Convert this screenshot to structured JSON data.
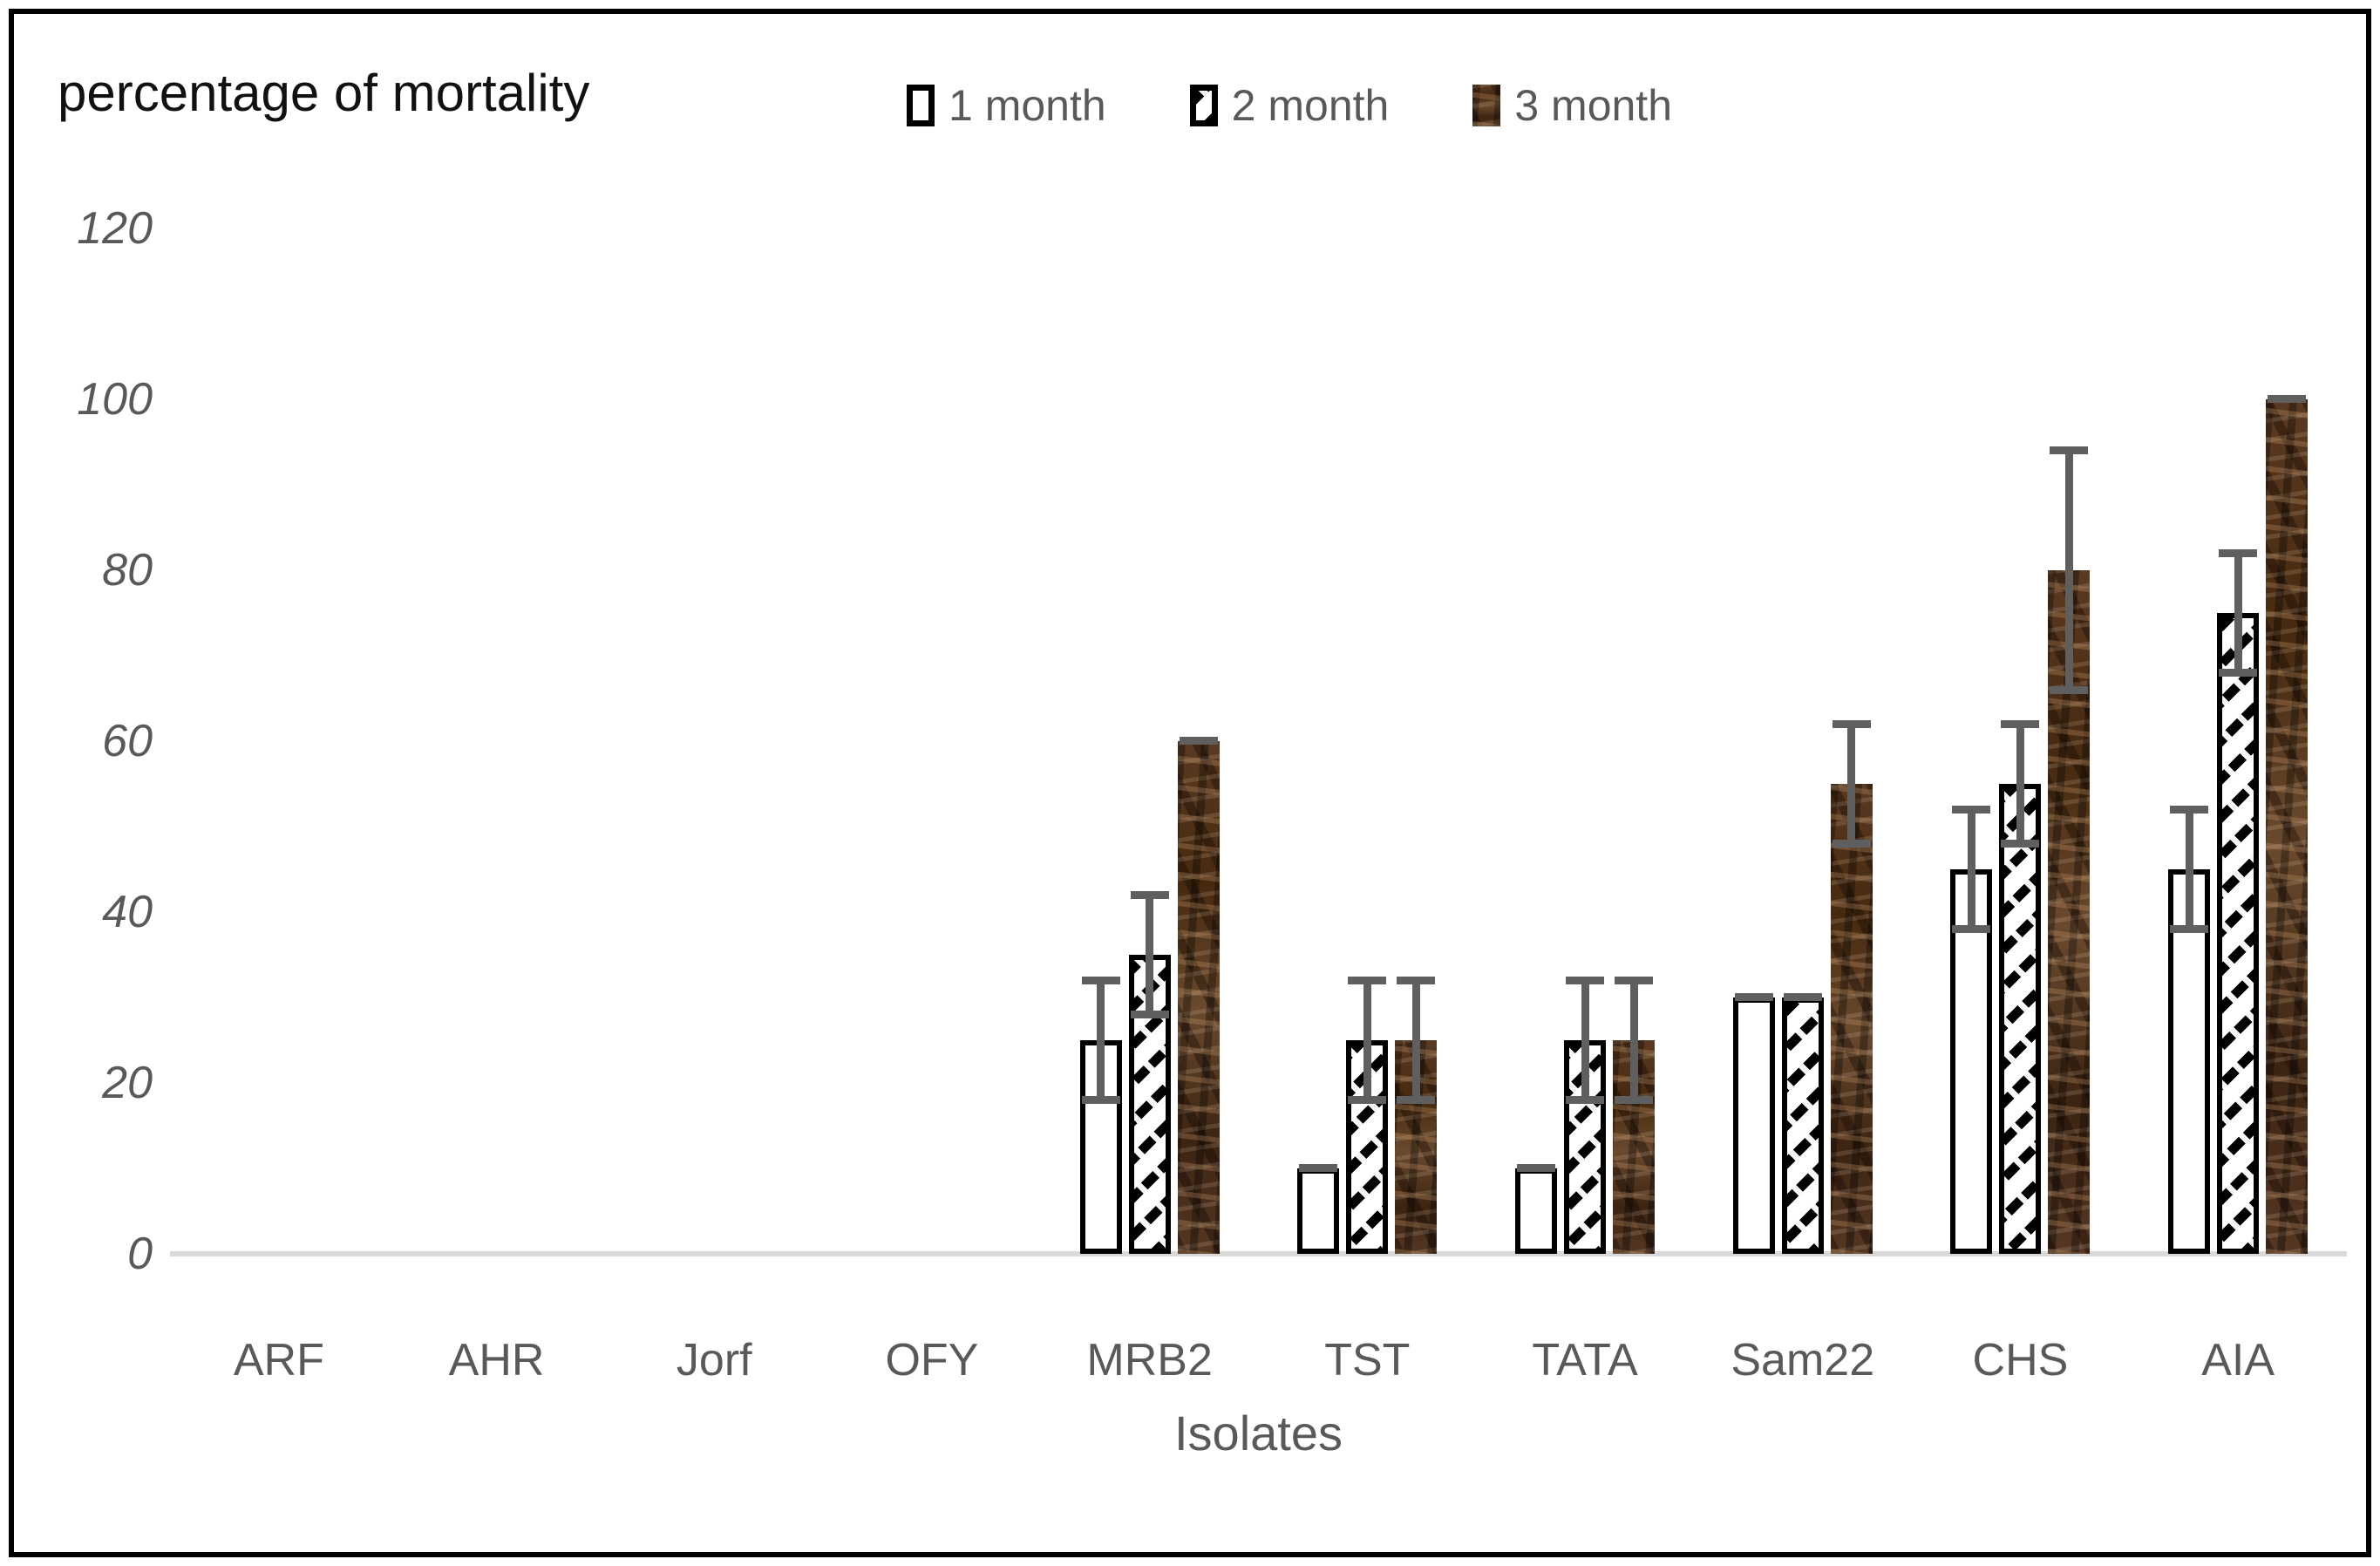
{
  "chart_data": {
    "type": "bar",
    "title": "percentage of mortality",
    "xlabel": "Isolates",
    "ylabel": "",
    "ylim": [
      0,
      120
    ],
    "yticks": [
      0,
      20,
      40,
      60,
      80,
      100,
      120
    ],
    "categories": [
      "ARF",
      "AHR",
      "Jorf",
      "OFY",
      "MRB2",
      "TST",
      "TATA",
      "Sam22",
      "CHS",
      "AIA"
    ],
    "series": [
      {
        "name": "1 month",
        "style": "white",
        "values": [
          0,
          0,
          0,
          0,
          25,
          10,
          10,
          30,
          45,
          45
        ],
        "errors": [
          null,
          null,
          null,
          null,
          7,
          0,
          0,
          0,
          7,
          7
        ]
      },
      {
        "name": "2 month",
        "style": "hatch",
        "values": [
          0,
          0,
          0,
          0,
          35,
          25,
          25,
          30,
          55,
          75
        ],
        "errors": [
          null,
          null,
          null,
          null,
          7,
          7,
          7,
          0,
          7,
          7
        ]
      },
      {
        "name": "3 month",
        "style": "brown",
        "values": [
          0,
          0,
          0,
          0,
          60,
          25,
          25,
          55,
          80,
          100
        ],
        "errors": [
          null,
          null,
          null,
          null,
          0,
          7,
          7,
          7,
          14,
          0
        ]
      }
    ],
    "legend_position": "top",
    "grid": "off",
    "error_bars": "visible"
  },
  "colors": {
    "axis_text": "#595959",
    "title_text": "#111111",
    "error_bar": "#5f5f5f",
    "baseline": "#d9d9d9",
    "bar_outline": "#000000",
    "brown_fill_base": "#4f3018",
    "frame_border": "#000000"
  }
}
